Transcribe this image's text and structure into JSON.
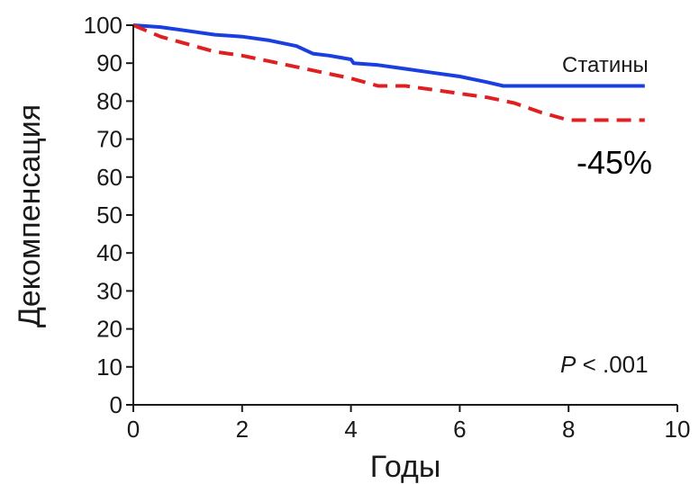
{
  "chart_data": {
    "type": "line",
    "xlabel": "Годы",
    "ylabel": "Декомпенсация",
    "xlim": [
      0,
      10
    ],
    "ylim": [
      0,
      100
    ],
    "x_ticks": [
      "0",
      "2",
      "4",
      "6",
      "8",
      "10"
    ],
    "y_ticks": [
      "0",
      "10",
      "20",
      "30",
      "40",
      "50",
      "60",
      "70",
      "80",
      "90",
      "100"
    ],
    "grid": false,
    "series": [
      {
        "name": "Статины",
        "color": "#1a3fe0",
        "style": "solid",
        "points": [
          [
            0,
            100
          ],
          [
            0.5,
            99.5
          ],
          [
            1,
            98.5
          ],
          [
            1.5,
            97.5
          ],
          [
            2,
            97
          ],
          [
            2.5,
            96
          ],
          [
            3,
            94.5
          ],
          [
            3.3,
            92.5
          ],
          [
            3.6,
            92
          ],
          [
            4,
            91
          ],
          [
            4.05,
            90
          ],
          [
            4.5,
            89.5
          ],
          [
            5,
            88.5
          ],
          [
            5.5,
            87.5
          ],
          [
            6,
            86.5
          ],
          [
            6.5,
            85
          ],
          [
            6.8,
            84
          ],
          [
            7,
            84
          ],
          [
            8,
            84
          ],
          [
            9,
            84
          ],
          [
            9.4,
            84
          ]
        ]
      },
      {
        "name": "",
        "color": "#e02020",
        "style": "dashed",
        "points": [
          [
            0,
            100
          ],
          [
            0.5,
            97
          ],
          [
            1,
            95
          ],
          [
            1.5,
            93
          ],
          [
            2,
            92
          ],
          [
            2.5,
            90.5
          ],
          [
            3,
            89
          ],
          [
            3.5,
            87.5
          ],
          [
            4,
            86
          ],
          [
            4.5,
            84
          ],
          [
            5,
            84
          ],
          [
            5.5,
            83
          ],
          [
            6,
            82
          ],
          [
            6.5,
            81
          ],
          [
            7,
            79.5
          ],
          [
            7.5,
            77
          ],
          [
            8,
            75
          ],
          [
            8.5,
            75
          ],
          [
            9,
            75
          ],
          [
            9.4,
            75
          ]
        ]
      }
    ],
    "annotations": {
      "series_label": "Статины",
      "reduction": "-45%",
      "p_italic": "P",
      "p_rest": " < .001"
    }
  }
}
